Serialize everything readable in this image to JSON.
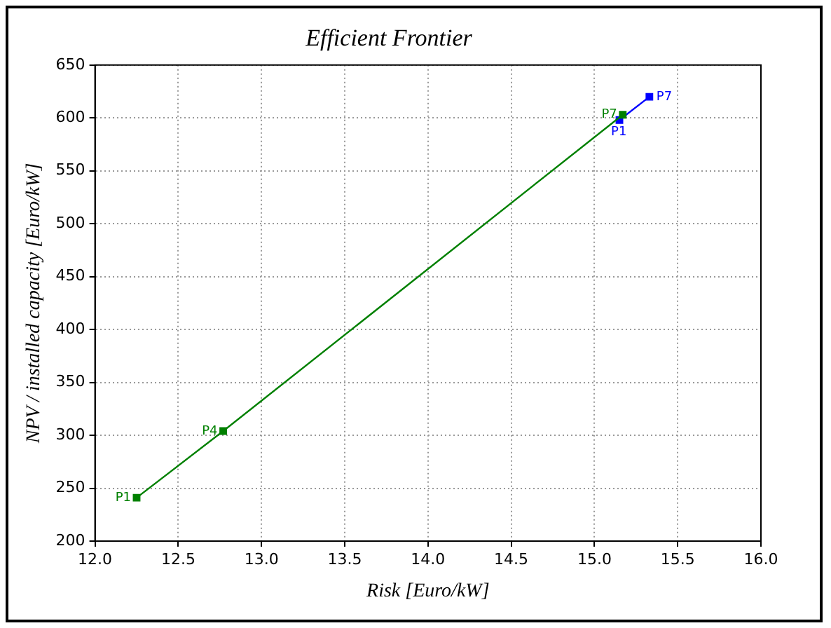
{
  "chart_data": {
    "type": "line",
    "title": "Efficient Frontier",
    "xlabel": "Risk [Euro/kW]",
    "ylabel": "NPV / installed capacity [Euro/kW]",
    "series": [
      {
        "color": "#008000",
        "x": [
          12.25,
          12.77,
          15.17
        ],
        "values": [
          241,
          304,
          603
        ]
      },
      {
        "color": "#0000ff",
        "x": [
          15.15,
          15.33
        ],
        "values": [
          598,
          620
        ]
      }
    ],
    "xlim": [
      12.0,
      16.0
    ],
    "xticks": [
      {
        "value": 12,
        "label": "12.0"
      },
      12.5,
      {
        "value": 13,
        "label": "13.0"
      },
      13.5,
      {
        "value": 14,
        "label": "14.0"
      },
      14.5,
      {
        "value": 15,
        "label": "15.0"
      },
      15.5,
      {
        "value": 16,
        "label": "16.0"
      }
    ],
    "ylim": [
      200,
      650
    ],
    "yticks": [
      200,
      250,
      300,
      350,
      400,
      450,
      500,
      550,
      600,
      650
    ],
    "grid": true,
    "marker": "square",
    "line_style": "solid",
    "legend": false,
    "annotations": [
      {
        "text": "P1",
        "x": 12.25,
        "y": 241
      },
      {
        "text": "P4",
        "x": 12.77,
        "y": 304
      },
      {
        "text": "P7",
        "x": 15.17,
        "y": 603
      },
      {
        "text": "P1",
        "x": 15.15,
        "y": 598
      },
      {
        "text": "P7",
        "x": 15.33,
        "y": 620
      }
    ]
  }
}
